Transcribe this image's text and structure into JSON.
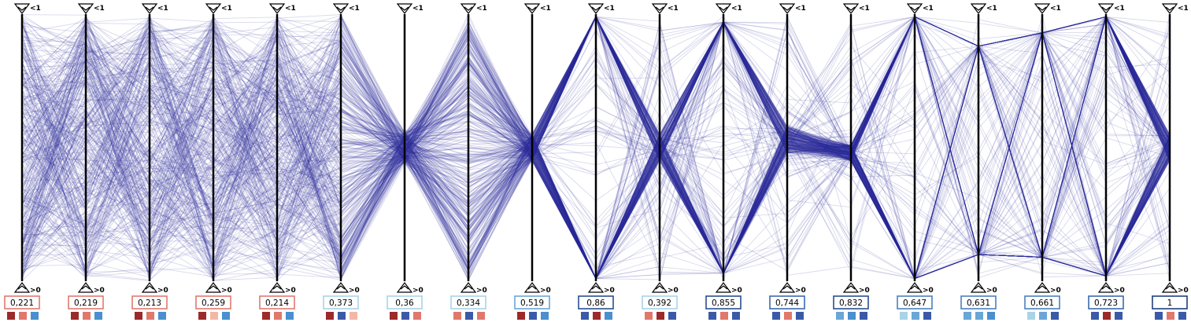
{
  "chart_data": {
    "type": "parallel-coordinates",
    "top_label": "<1",
    "bottom_label": ">0",
    "line_color": "#2d2f9c",
    "axis_color": "#000000",
    "score_range": [
      0,
      1
    ],
    "axes": [
      {
        "score": "0,221",
        "border": "#e07a6f",
        "swatches": [
          "#9c2a2a",
          "#e0786c",
          "#4a8fcf"
        ]
      },
      {
        "score": "0,219",
        "border": "#e07a6f",
        "swatches": [
          "#9c2a2a",
          "#e0786c",
          "#4a8fcf"
        ]
      },
      {
        "score": "0,213",
        "border": "#e07a6f",
        "swatches": [
          "#9c2a2a",
          "#e0786c",
          "#4a8fcf"
        ]
      },
      {
        "score": "0,259",
        "border": "#e07a6f",
        "swatches": [
          "#9c2a2a",
          "#f2b8a6",
          "#4a8fcf"
        ]
      },
      {
        "score": "0,214",
        "border": "#e07a6f",
        "swatches": [
          "#9c2a2a",
          "#e0786c",
          "#4a8fcf"
        ]
      },
      {
        "score": "0,373",
        "border": "#a9d3e8",
        "swatches": [
          "#9c2a2a",
          "#3a5aa8",
          "#f2b8a6"
        ]
      },
      {
        "score": "0,36",
        "border": "#a9d3e8",
        "swatches": [
          "#9c2a2a",
          "#3a5aa8",
          "#e0786c"
        ]
      },
      {
        "score": "0,334",
        "border": "#a9d3e8",
        "swatches": [
          "#e0786c",
          "#3a5aa8",
          "#e0786c"
        ]
      },
      {
        "score": "0,519",
        "border": "#6aa6d6",
        "swatches": [
          "#9c2a2a",
          "#3a5aa8",
          "#4a8fcf"
        ]
      },
      {
        "score": "0,86",
        "border": "#2a4f8f",
        "swatches": [
          "#3a5aa8",
          "#9c2a2a",
          "#4a8fcf"
        ]
      },
      {
        "score": "0,392",
        "border": "#a9d3e8",
        "swatches": [
          "#e0786c",
          "#9c2a2a",
          "#3a5aa8"
        ]
      },
      {
        "score": "0,855",
        "border": "#2a4f8f",
        "swatches": [
          "#3a5aa8",
          "#e0786c",
          "#3a5aa8"
        ]
      },
      {
        "score": "0,744",
        "border": "#3a6ab0",
        "swatches": [
          "#3a5aa8",
          "#e0786c",
          "#3a5aa8"
        ]
      },
      {
        "score": "0,832",
        "border": "#2a4f8f",
        "swatches": [
          "#6aa6d6",
          "#4a8fcf",
          "#3a5aa8"
        ]
      },
      {
        "score": "0,647",
        "border": "#4a80c0",
        "swatches": [
          "#a9d3e8",
          "#6aa6d6",
          "#3a5aa8"
        ]
      },
      {
        "score": "0,631",
        "border": "#4a80c0",
        "swatches": [
          "#6aa6d6",
          "#6aa6d6",
          "#4a8fcf"
        ]
      },
      {
        "score": "0,661",
        "border": "#4a80c0",
        "swatches": [
          "#a9d3e8",
          "#6aa6d6",
          "#3a5aa8"
        ]
      },
      {
        "score": "0,723",
        "border": "#3a6ab0",
        "swatches": [
          "#3a5aa8",
          "#9c2a2a",
          "#3a5aa8"
        ]
      },
      {
        "score": "1",
        "border": "#1f3f80",
        "swatches": [
          "#3a5aa8",
          "#e0786c",
          "#3a5aa8"
        ]
      }
    ],
    "line_count": 380
  }
}
